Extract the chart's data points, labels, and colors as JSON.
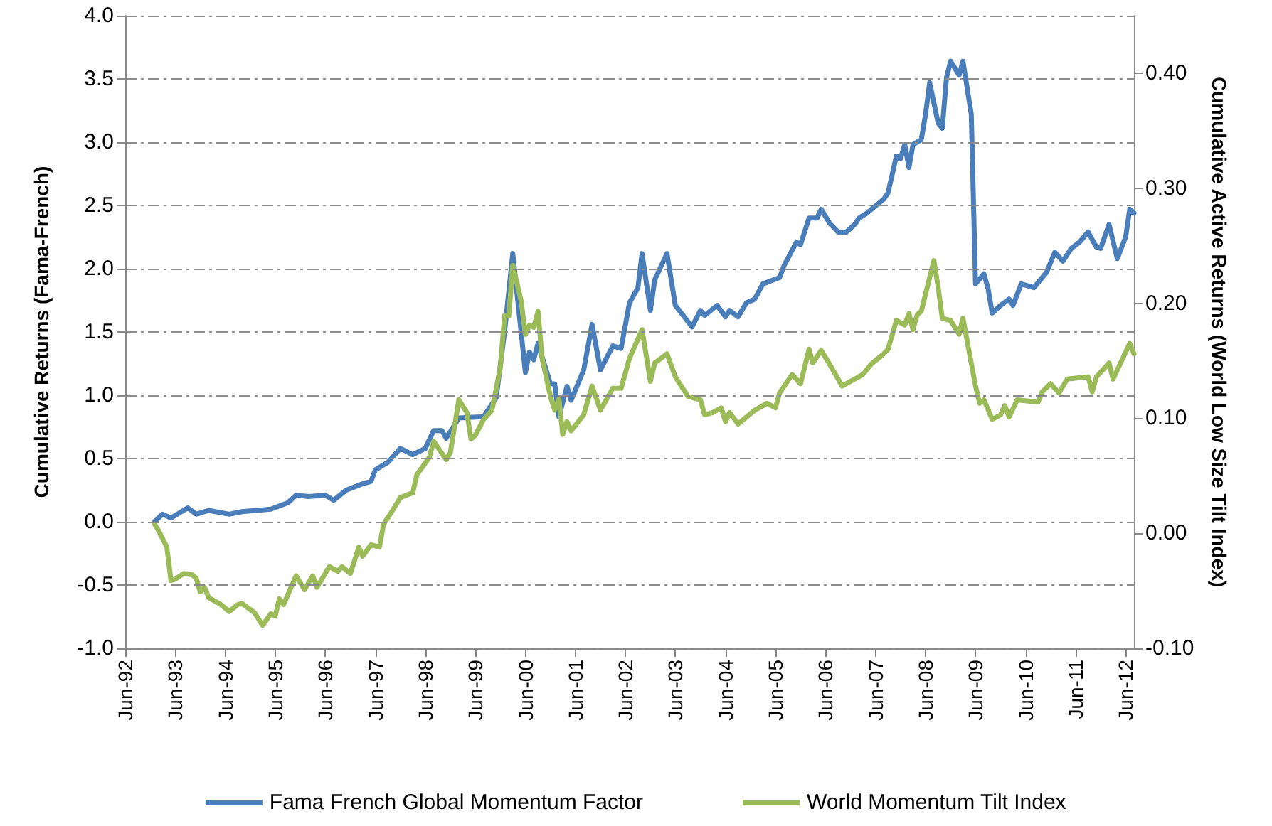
{
  "chart_data": {
    "type": "line",
    "ylabel": "Cumulative Returns (Fama-French)",
    "y2label": "Cumulative Active Returns (World Low Size Tilt Index)",
    "xlim": [
      "1992-06",
      "2012-08"
    ],
    "xticks": [
      {
        "value": "1992-06",
        "label": "Jun-92"
      },
      {
        "value": "1993-06",
        "label": "Jun-93"
      },
      {
        "value": "1994-06",
        "label": "Jun-94"
      },
      {
        "value": "1995-06",
        "label": "Jun-95"
      },
      {
        "value": "1996-06",
        "label": "Jun-96"
      },
      {
        "value": "1997-06",
        "label": "Jun-97"
      },
      {
        "value": "1998-06",
        "label": "Jun-98"
      },
      {
        "value": "1999-06",
        "label": "Jun-99"
      },
      {
        "value": "2000-06",
        "label": "Jun-00"
      },
      {
        "value": "2001-06",
        "label": "Jun-01"
      },
      {
        "value": "2002-06",
        "label": "Jun-02"
      },
      {
        "value": "2003-06",
        "label": "Jun-03"
      },
      {
        "value": "2004-06",
        "label": "Jun-04"
      },
      {
        "value": "2005-06",
        "label": "Jun-05"
      },
      {
        "value": "2006-06",
        "label": "Jun-06"
      },
      {
        "value": "2007-06",
        "label": "Jun-07"
      },
      {
        "value": "2008-06",
        "label": "Jun-08"
      },
      {
        "value": "2009-06",
        "label": "Jun-09"
      },
      {
        "value": "2010-06",
        "label": "Jun-10"
      },
      {
        "value": "2011-06",
        "label": "Jun-11"
      },
      {
        "value": "2012-06",
        "label": "Jun-12"
      }
    ],
    "ylim": [
      -1.0,
      4.0
    ],
    "yticks": [
      {
        "value": -1,
        "label": "-1.0"
      },
      {
        "value": -0.5,
        "label": "-0.5"
      },
      {
        "value": 0,
        "label": "0.0"
      },
      {
        "value": 0.5,
        "label": "0.5"
      },
      {
        "value": 1,
        "label": "1.0"
      },
      {
        "value": 1.5,
        "label": "1.5"
      },
      {
        "value": 2,
        "label": "2.0"
      },
      {
        "value": 2.5,
        "label": "2.5"
      },
      {
        "value": 3,
        "label": "3.0"
      },
      {
        "value": 3.5,
        "label": "3.5"
      },
      {
        "value": 4,
        "label": "4.0"
      }
    ],
    "y2lim": [
      -0.1,
      0.45
    ],
    "y2ticks": [
      {
        "value": -0.1,
        "label": "-0.10"
      },
      {
        "value": 0,
        "label": "0.00"
      },
      {
        "value": 0.1,
        "label": "0.10"
      },
      {
        "value": 0.2,
        "label": "0.20"
      },
      {
        "value": 0.3,
        "label": "0.30"
      },
      {
        "value": 0.4,
        "label": "0.40"
      }
    ],
    "grid": "y",
    "legend": "bottom",
    "marker": "none",
    "line_style": "solid",
    "series": [
      {
        "name": "Fama French Global Momentum Factor",
        "color": "#4a7ebb",
        "x": [
          "1993-01",
          "1993-03",
          "1993-05",
          "1993-09",
          "1993-11",
          "1994-02",
          "1994-07",
          "1994-10",
          "1995-05",
          "1995-09",
          "1995-11",
          "1996-02",
          "1996-06",
          "1996-08",
          "1996-11",
          "1997-03",
          "1997-05",
          "1997-06",
          "1997-09",
          "1997-12",
          "1998-03",
          "1998-06",
          "1998-08",
          "1998-10",
          "1998-11",
          "1999-02",
          "1999-08",
          "1999-11",
          "2000-01",
          "2000-03",
          "2000-06",
          "2000-07",
          "2000-08",
          "2000-09",
          "2000-12",
          "2001-01",
          "2001-02",
          "2001-04",
          "2001-05",
          "2001-08",
          "2001-10",
          "2001-12",
          "2002-03",
          "2002-05",
          "2002-07",
          "2002-09",
          "2002-10",
          "2002-12",
          "2003-01",
          "2003-04",
          "2003-06",
          "2003-10",
          "2003-12",
          "2004-01",
          "2004-04",
          "2004-06",
          "2004-07",
          "2004-09",
          "2004-11",
          "2005-01",
          "2005-03",
          "2005-07",
          "2005-08",
          "2005-11",
          "2005-12",
          "2006-02",
          "2006-04",
          "2006-05",
          "2006-07",
          "2006-09",
          "2006-11",
          "2007-01",
          "2007-02",
          "2007-04",
          "2007-08",
          "2007-09",
          "2007-11",
          "2007-12",
          "2008-01",
          "2008-02",
          "2008-03",
          "2008-05",
          "2008-06",
          "2008-07",
          "2008-09",
          "2008-10",
          "2008-11",
          "2008-12",
          "2009-02",
          "2009-03",
          "2009-05",
          "2009-06",
          "2009-08",
          "2009-09",
          "2009-10",
          "2009-12",
          "2010-02",
          "2010-03",
          "2010-05",
          "2010-08",
          "2010-11",
          "2011-01",
          "2011-03",
          "2011-05",
          "2011-07",
          "2011-09",
          "2011-11",
          "2011-12",
          "2012-02",
          "2012-04",
          "2012-06",
          "2012-07",
          "2012-08"
        ],
        "values": [
          0.0,
          0.06,
          0.03,
          0.11,
          0.06,
          0.09,
          0.06,
          0.08,
          0.1,
          0.15,
          0.21,
          0.2,
          0.21,
          0.17,
          0.25,
          0.3,
          0.32,
          0.41,
          0.47,
          0.58,
          0.53,
          0.58,
          0.72,
          0.72,
          0.66,
          0.82,
          0.83,
          0.98,
          1.5,
          2.12,
          1.18,
          1.34,
          1.28,
          1.41,
          1.09,
          1.09,
          0.83,
          1.07,
          0.96,
          1.2,
          1.56,
          1.2,
          1.39,
          1.37,
          1.73,
          1.85,
          2.12,
          1.67,
          1.91,
          2.12,
          1.71,
          1.54,
          1.67,
          1.63,
          1.71,
          1.62,
          1.67,
          1.62,
          1.73,
          1.76,
          1.88,
          1.93,
          2.02,
          2.21,
          2.19,
          2.4,
          2.4,
          2.47,
          2.36,
          2.29,
          2.29,
          2.35,
          2.4,
          2.44,
          2.55,
          2.6,
          2.89,
          2.87,
          2.98,
          2.8,
          2.98,
          3.02,
          3.22,
          3.47,
          3.15,
          3.11,
          3.51,
          3.64,
          3.53,
          3.64,
          3.22,
          1.88,
          1.96,
          1.84,
          1.65,
          1.71,
          1.76,
          1.71,
          1.88,
          1.85,
          1.97,
          2.13,
          2.06,
          2.16,
          2.21,
          2.29,
          2.17,
          2.16,
          2.35,
          2.08,
          2.25,
          2.47,
          2.44
        ]
      },
      {
        "name": "World Momentum Tilt Index",
        "color": "#9bbb59",
        "axis": "y2",
        "x": [
          "1993-01",
          "1993-02",
          "1993-04",
          "1993-05",
          "1993-06",
          "1993-08",
          "1993-10",
          "1993-11",
          "1993-12",
          "1994-01",
          "1994-02",
          "1994-05",
          "1994-07",
          "1994-09",
          "1994-10",
          "1995-01",
          "1995-03",
          "1995-05",
          "1995-06",
          "1995-07",
          "1995-08",
          "1995-11",
          "1996-01",
          "1996-03",
          "1996-04",
          "1996-07",
          "1996-09",
          "1996-10",
          "1996-12",
          "1997-02",
          "1997-03",
          "1997-05",
          "1997-07",
          "1997-08",
          "1997-10",
          "1997-12",
          "1998-02",
          "1998-03",
          "1998-04",
          "1998-07",
          "1998-08",
          "1998-11",
          "1998-12",
          "1999-02",
          "1999-04",
          "1999-05",
          "1999-06",
          "1999-08",
          "1999-10",
          "1999-12",
          "2000-01",
          "2000-02",
          "2000-03",
          "2000-05",
          "2000-06",
          "2000-07",
          "2000-08",
          "2000-09",
          "2000-10",
          "2000-12",
          "2001-01",
          "2001-02",
          "2001-03",
          "2001-04",
          "2001-05",
          "2001-08",
          "2001-10",
          "2001-12",
          "2002-03",
          "2002-05",
          "2002-07",
          "2002-10",
          "2002-12",
          "2003-01",
          "2003-04",
          "2003-06",
          "2003-09",
          "2003-12",
          "2004-01",
          "2004-03",
          "2004-05",
          "2004-06",
          "2004-07",
          "2004-09",
          "2004-11",
          "2005-01",
          "2005-04",
          "2005-06",
          "2005-07",
          "2005-10",
          "2005-12",
          "2006-02",
          "2006-03",
          "2006-05",
          "2006-07",
          "2006-10",
          "2007-03",
          "2007-05",
          "2007-08",
          "2007-09",
          "2007-11",
          "2008-01",
          "2008-02",
          "2008-03",
          "2008-04",
          "2008-05",
          "2008-06",
          "2008-08",
          "2008-09",
          "2008-10",
          "2008-12",
          "2009-02",
          "2009-03",
          "2009-06",
          "2009-07",
          "2009-08",
          "2009-10",
          "2009-12",
          "2010-01",
          "2010-02",
          "2010-04",
          "2010-09",
          "2010-10",
          "2010-12",
          "2011-02",
          "2011-04",
          "2011-09",
          "2011-10",
          "2011-11",
          "2012-02",
          "2012-03",
          "2012-07",
          "2012-08"
        ],
        "values": [
          0.008,
          0.002,
          -0.012,
          -0.041,
          -0.04,
          -0.035,
          -0.036,
          -0.039,
          -0.051,
          -0.047,
          -0.056,
          -0.062,
          -0.068,
          -0.062,
          -0.061,
          -0.069,
          -0.08,
          -0.07,
          -0.072,
          -0.057,
          -0.062,
          -0.037,
          -0.049,
          -0.037,
          -0.047,
          -0.029,
          -0.033,
          -0.029,
          -0.035,
          -0.012,
          -0.02,
          -0.01,
          -0.012,
          0.008,
          0.019,
          0.031,
          0.034,
          0.035,
          0.051,
          0.066,
          0.08,
          0.064,
          0.07,
          0.116,
          0.105,
          0.082,
          0.085,
          0.099,
          0.107,
          0.144,
          0.189,
          0.189,
          0.233,
          0.202,
          0.173,
          0.181,
          0.179,
          0.193,
          0.152,
          0.119,
          0.107,
          0.117,
          0.086,
          0.097,
          0.089,
          0.103,
          0.128,
          0.107,
          0.126,
          0.126,
          0.152,
          0.177,
          0.132,
          0.148,
          0.156,
          0.136,
          0.119,
          0.116,
          0.103,
          0.105,
          0.109,
          0.097,
          0.105,
          0.095,
          0.101,
          0.107,
          0.113,
          0.109,
          0.122,
          0.138,
          0.13,
          0.16,
          0.148,
          0.159,
          0.147,
          0.128,
          0.138,
          0.147,
          0.156,
          0.16,
          0.185,
          0.181,
          0.191,
          0.177,
          0.19,
          0.193,
          0.208,
          0.237,
          0.214,
          0.187,
          0.185,
          0.173,
          0.187,
          0.128,
          0.113,
          0.116,
          0.099,
          0.103,
          0.111,
          0.101,
          0.116,
          0.114,
          0.123,
          0.13,
          0.122,
          0.134,
          0.136,
          0.123,
          0.136,
          0.148,
          0.134,
          0.165,
          0.156
        ]
      }
    ]
  }
}
